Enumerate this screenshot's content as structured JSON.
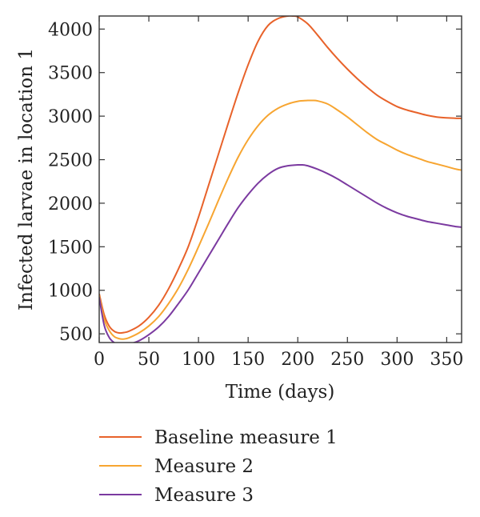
{
  "chart_data": {
    "type": "line",
    "title": "",
    "xlabel": "Time (days)",
    "ylabel": "Infected larvae in location 1",
    "xlim": [
      0,
      365
    ],
    "ylim": [
      400,
      4150
    ],
    "xticks": [
      0,
      50,
      100,
      150,
      200,
      250,
      300,
      350
    ],
    "yticks": [
      500,
      1000,
      1500,
      2000,
      2500,
      3000,
      3500,
      4000
    ],
    "grid": false,
    "legend_position": "bottom",
    "series": [
      {
        "name": "Baseline measure 1",
        "color": "#e8622a",
        "x": [
          0,
          5,
          10,
          15,
          20,
          25,
          30,
          40,
          50,
          60,
          70,
          80,
          90,
          100,
          110,
          120,
          130,
          140,
          150,
          160,
          170,
          180,
          190,
          195,
          200,
          210,
          220,
          230,
          240,
          250,
          260,
          270,
          280,
          290,
          300,
          310,
          320,
          330,
          340,
          350,
          360,
          365
        ],
        "y": [
          960,
          720,
          590,
          530,
          510,
          515,
          530,
          590,
          690,
          830,
          1020,
          1250,
          1510,
          1840,
          2200,
          2560,
          2920,
          3270,
          3590,
          3860,
          4040,
          4120,
          4150,
          4150,
          4140,
          4060,
          3930,
          3790,
          3660,
          3540,
          3430,
          3330,
          3240,
          3170,
          3110,
          3070,
          3040,
          3010,
          2990,
          2980,
          2975,
          2975
        ]
      },
      {
        "name": "Measure 2",
        "color": "#f7a531",
        "x": [
          0,
          5,
          10,
          15,
          20,
          25,
          30,
          40,
          50,
          60,
          70,
          80,
          90,
          100,
          110,
          120,
          130,
          140,
          150,
          160,
          170,
          180,
          190,
          200,
          210,
          215,
          220,
          230,
          240,
          250,
          260,
          270,
          280,
          290,
          300,
          310,
          320,
          330,
          340,
          350,
          360,
          365
        ],
        "y": [
          940,
          670,
          540,
          470,
          445,
          440,
          455,
          510,
          590,
          700,
          850,
          1030,
          1250,
          1500,
          1760,
          2030,
          2290,
          2530,
          2730,
          2890,
          3010,
          3090,
          3140,
          3170,
          3180,
          3180,
          3175,
          3140,
          3070,
          2990,
          2900,
          2810,
          2730,
          2670,
          2610,
          2560,
          2520,
          2480,
          2450,
          2420,
          2390,
          2380
        ]
      },
      {
        "name": "Measure 3",
        "color": "#7b3aa0",
        "x": [
          0,
          5,
          10,
          15,
          20,
          25,
          30,
          40,
          50,
          60,
          70,
          80,
          90,
          100,
          110,
          120,
          130,
          140,
          150,
          160,
          170,
          180,
          190,
          200,
          205,
          210,
          220,
          230,
          240,
          250,
          260,
          270,
          280,
          290,
          300,
          310,
          320,
          330,
          340,
          350,
          360,
          365
        ],
        "y": [
          920,
          600,
          460,
          400,
          375,
          370,
          380,
          420,
          490,
          580,
          700,
          850,
          1010,
          1200,
          1390,
          1580,
          1770,
          1950,
          2100,
          2230,
          2330,
          2400,
          2430,
          2440,
          2440,
          2430,
          2390,
          2340,
          2280,
          2210,
          2140,
          2070,
          2000,
          1940,
          1890,
          1850,
          1820,
          1790,
          1770,
          1750,
          1730,
          1725
        ]
      }
    ]
  }
}
